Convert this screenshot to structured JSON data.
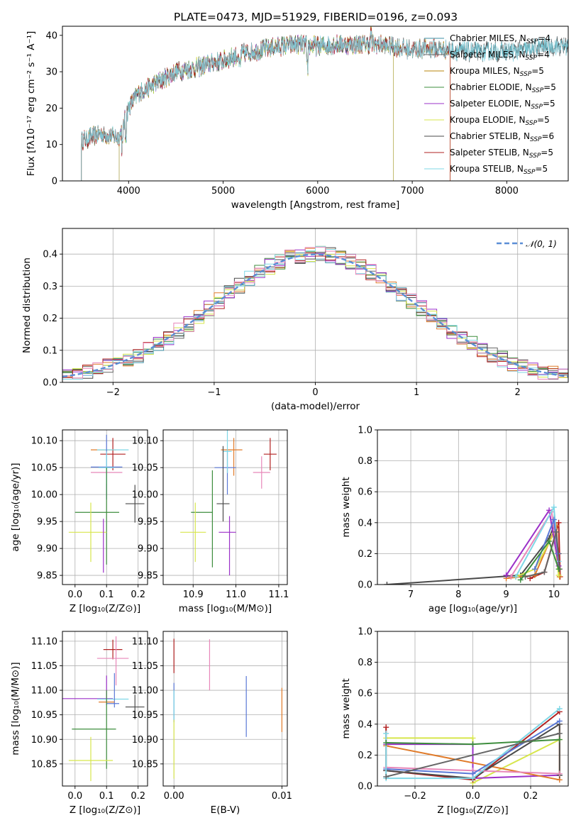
{
  "figure": {
    "title": "PLATE=0473, MJD=51929, FIBERID=0196, z=0.093"
  },
  "colors": {
    "Chabrier MILES": "#3d8fa6",
    "Salpeter MILES": "#666666",
    "Kroupa MILES": "#b8860b",
    "Chabrier ELODIE": "#3e8e3e",
    "Salpeter ELODIE": "#9b30c8",
    "Kroupa ELODIE": "#d7e64c",
    "Chabrier STELIB": "#4a4a4a",
    "Salpeter STELIB": "#b22222",
    "Kroupa STELIB": "#7fd7e6",
    "extra1": "#e07b2a",
    "extra2": "#e887b9",
    "extra3": "#5a78d6",
    "normal": "#5b8ed6"
  },
  "chart_data": [
    {
      "id": "spectrum",
      "type": "line",
      "xlabel": "wavelength [Angstrom, rest frame]",
      "ylabel": "Flux [fλ10⁻¹⁷ erg cm⁻² s⁻¹ A⁻¹]",
      "xlim": [
        3300,
        8650
      ],
      "ylim": [
        0,
        42.5
      ],
      "xticks": [
        4000,
        5000,
        6000,
        7000,
        8000
      ],
      "yticks": [
        0,
        10,
        20,
        30,
        40
      ],
      "legend": "top-right",
      "continuum_x": [
        3500,
        3700,
        3900,
        4000,
        4100,
        4300,
        4500,
        4700,
        4900,
        5000,
        5200,
        5400,
        5600,
        5800,
        6000,
        6200,
        6400,
        6600,
        6800,
        7000,
        7200,
        7400,
        7600,
        7800,
        8000,
        8200,
        8400
      ],
      "continuum_y": [
        11,
        13,
        12,
        20,
        24,
        27,
        30,
        31,
        32.5,
        33,
        35,
        36,
        37,
        37.5,
        37,
        37.5,
        37.5,
        37.5,
        37,
        36,
        36.5,
        36,
        35.5,
        35.5,
        35.5,
        36,
        37
      ],
      "series": [
        {
          "name": "Chabrier MILES",
          "ssp": "4",
          "x_start": 3500,
          "x_end": 8650
        },
        {
          "name": "Salpeter MILES",
          "ssp": "4",
          "x_start": 3500,
          "x_end": 8650
        },
        {
          "name": "Kroupa MILES",
          "ssp": "5",
          "x_start": 3500,
          "x_end": 7400
        },
        {
          "name": "Chabrier ELODIE",
          "ssp": "5",
          "x_start": 3900,
          "x_end": 6800
        },
        {
          "name": "Salpeter ELODIE",
          "ssp": "5",
          "x_start": 3900,
          "x_end": 6800
        },
        {
          "name": "Kroupa ELODIE",
          "ssp": "5",
          "x_start": 3900,
          "x_end": 6800
        },
        {
          "name": "Chabrier STELIB",
          "ssp": "6",
          "x_start": 3500,
          "x_end": 8650
        },
        {
          "name": "Salpeter STELIB",
          "ssp": "5",
          "x_start": 3500,
          "x_end": 7400
        },
        {
          "name": "Kroupa STELIB",
          "ssp": "5",
          "x_start": 3500,
          "x_end": 8650
        }
      ],
      "legend_prefix": "N",
      "legend_sub": "SSP"
    },
    {
      "id": "residuals",
      "type": "line",
      "xlabel": "(data-model)/error",
      "ylabel": "Normed distribution",
      "xlim": [
        -2.5,
        2.5
      ],
      "ylim": [
        0,
        0.48
      ],
      "xticks": [
        -2,
        -1,
        0,
        1,
        2
      ],
      "yticks": [
        0.0,
        0.1,
        0.2,
        0.3,
        0.4
      ],
      "grid": true,
      "legend": "top-right",
      "legend_label": "𝒩(0, 1)"
    },
    {
      "id": "age-vs-Z",
      "type": "scatter",
      "xlabel": "Z [log₁₀(Z/Z⊙)]",
      "ylabel": "age  [log₁₀(age/yr)]",
      "xlim": [
        -0.04,
        0.23
      ],
      "ylim": [
        9.833,
        10.12
      ],
      "xticks": [
        0.0,
        0.1,
        0.2
      ],
      "yticks": [
        9.85,
        9.9,
        9.95,
        10.0,
        10.05,
        10.1
      ],
      "grid": true,
      "points": [
        {
          "x": 0.09,
          "xerr": 0.04,
          "y": 10.083,
          "yerr": 0.0,
          "color": "#e07b2a"
        },
        {
          "x": 0.12,
          "xerr": 0.04,
          "y": 10.075,
          "yerr": 0.03,
          "color": "#b22222"
        },
        {
          "x": 0.12,
          "xerr": 0.05,
          "y": 10.083,
          "yerr": 0.0,
          "color": "#7fd7e6"
        },
        {
          "x": 0.1,
          "xerr": 0.05,
          "y": 10.051,
          "yerr": 0.06,
          "color": "#5a78d6"
        },
        {
          "x": 0.1,
          "xerr": 0.05,
          "y": 10.041,
          "yerr": 0.0,
          "color": "#e887b9"
        },
        {
          "x": 0.1,
          "xerr": 0.025,
          "y": 10.05,
          "yerr": 0.03,
          "color": "#7fd7e6"
        },
        {
          "x": 0.19,
          "xerr": 0.03,
          "y": 9.983,
          "yerr": 0.035,
          "color": "#4a4a4a"
        },
        {
          "x": 0.07,
          "xerr": 0.07,
          "y": 9.967,
          "yerr": 0.0,
          "color": "#3e8e3e"
        },
        {
          "x": 0.1,
          "xerr": 0.0,
          "y": 9.96,
          "yerr": 0.09,
          "color": "#3e8e3e"
        },
        {
          "x": 0.04,
          "xerr": 0.06,
          "y": 9.93,
          "yerr": 0.0,
          "color": "#d7e64c"
        },
        {
          "x": 0.05,
          "xerr": 0.0,
          "y": 9.93,
          "yerr": 0.055,
          "color": "#d7e64c"
        },
        {
          "x": 0.09,
          "xerr": 0.0,
          "y": 9.905,
          "yerr": 0.05,
          "color": "#9b30c8"
        }
      ]
    },
    {
      "id": "age-vs-mass",
      "type": "scatter",
      "xlabel": "mass [log₁₀(M/M⊙)]",
      "ylabel": "",
      "xlim": [
        10.83,
        11.12
      ],
      "ylim": [
        9.833,
        10.12
      ],
      "xticks": [
        10.9,
        11.0,
        11.1
      ],
      "yticks": [
        9.85,
        9.9,
        9.95,
        10.0,
        10.05,
        10.1
      ],
      "grid": true,
      "points": [
        {
          "x": 10.99,
          "xerr": 0.025,
          "y": 10.083,
          "yerr": 0.0,
          "color": "#e07b2a"
        },
        {
          "x": 10.995,
          "xerr": 0.0,
          "y": 10.07,
          "yerr": 0.035,
          "color": "#e07b2a"
        },
        {
          "x": 11.08,
          "xerr": 0.015,
          "y": 10.075,
          "yerr": 0.03,
          "color": "#b22222"
        },
        {
          "x": 11.06,
          "xerr": 0.02,
          "y": 10.041,
          "yerr": 0.03,
          "color": "#e887b9"
        },
        {
          "x": 10.975,
          "xerr": 0.025,
          "y": 10.05,
          "yerr": 0.0,
          "color": "#5a78d6"
        },
        {
          "x": 10.98,
          "xerr": 0.0,
          "y": 10.04,
          "yerr": 0.04,
          "color": "#5a78d6"
        },
        {
          "x": 10.98,
          "xerr": 0.01,
          "y": 10.08,
          "yerr": 0.04,
          "color": "#7fd7e6"
        },
        {
          "x": 10.97,
          "xerr": 0.0,
          "y": 10.02,
          "yerr": 0.07,
          "color": "#4a4a4a"
        },
        {
          "x": 10.97,
          "xerr": 0.015,
          "y": 9.983,
          "yerr": 0.0,
          "color": "#4a4a4a"
        },
        {
          "x": 10.92,
          "xerr": 0.025,
          "y": 9.967,
          "yerr": 0.0,
          "color": "#3e8e3e"
        },
        {
          "x": 10.945,
          "xerr": 0.0,
          "y": 9.955,
          "yerr": 0.09,
          "color": "#3e8e3e"
        },
        {
          "x": 10.9,
          "xerr": 0.03,
          "y": 9.93,
          "yerr": 0.0,
          "color": "#d7e64c"
        },
        {
          "x": 10.905,
          "xerr": 0.0,
          "y": 9.93,
          "yerr": 0.055,
          "color": "#d7e64c"
        },
        {
          "x": 10.98,
          "xerr": 0.02,
          "y": 9.93,
          "yerr": 0.0,
          "color": "#9b30c8"
        },
        {
          "x": 10.985,
          "xerr": 0.0,
          "y": 9.905,
          "yerr": 0.055,
          "color": "#9b30c8"
        }
      ]
    },
    {
      "id": "weight-vs-age",
      "type": "line",
      "xlabel": "age  [log₁₀(age/yr)]",
      "ylabel": "mass weight",
      "xlim": [
        6.3,
        10.3
      ],
      "ylim": [
        0,
        1.0
      ],
      "xticks": [
        7,
        8,
        9,
        10
      ],
      "yticks": [
        0.0,
        0.2,
        0.4,
        0.6,
        0.8,
        1.0
      ],
      "grid": true,
      "series": [
        {
          "color": "#4a4a4a",
          "x": [
            6.5,
            9.3,
            9.9,
            10.0,
            10.1
          ],
          "y": [
            0.0,
            0.06,
            0.3,
            0.38,
            0.2
          ]
        },
        {
          "color": "#b22222",
          "x": [
            9.5,
            9.8,
            10.1,
            10.13
          ],
          "y": [
            0.04,
            0.08,
            0.4,
            0.05
          ]
        },
        {
          "color": "#e07b2a",
          "x": [
            9.0,
            9.6,
            10.05,
            10.12
          ],
          "y": [
            0.04,
            0.06,
            0.38,
            0.05
          ]
        },
        {
          "color": "#d7e64c",
          "x": [
            9.2,
            9.6,
            10.0,
            10.1
          ],
          "y": [
            0.05,
            0.1,
            0.33,
            0.06
          ]
        },
        {
          "color": "#9b30c8",
          "x": [
            9.0,
            9.9,
            10.1
          ],
          "y": [
            0.06,
            0.48,
            0.12
          ]
        },
        {
          "color": "#e887b9",
          "x": [
            9.1,
            9.95,
            10.08
          ],
          "y": [
            0.05,
            0.47,
            0.2
          ]
        },
        {
          "color": "#7fd7e6",
          "x": [
            9.2,
            10.0,
            10.1
          ],
          "y": [
            0.05,
            0.5,
            0.15
          ]
        },
        {
          "color": "#5a78d6",
          "x": [
            9.6,
            10.0,
            10.08
          ],
          "y": [
            0.1,
            0.42,
            0.2
          ]
        },
        {
          "color": "#666666",
          "x": [
            9.4,
            9.8,
            10.05,
            10.12
          ],
          "y": [
            0.05,
            0.08,
            0.34,
            0.1
          ]
        },
        {
          "color": "#3e8e3e",
          "x": [
            9.3,
            9.9,
            10.1
          ],
          "y": [
            0.03,
            0.28,
            0.1
          ]
        }
      ]
    },
    {
      "id": "mass-vs-Z",
      "type": "scatter",
      "xlabel": "Z [log₁₀(Z/Z⊙)]",
      "ylabel": "mass [log₁₀(M/M⊙)]",
      "xlim": [
        -0.04,
        0.23
      ],
      "ylim": [
        10.805,
        11.12
      ],
      "xticks": [
        0.0,
        0.1,
        0.2
      ],
      "yticks": [
        10.85,
        10.9,
        10.95,
        11.0,
        11.05,
        11.1
      ],
      "grid": true,
      "points": [
        {
          "x": 0.12,
          "xerr": 0.03,
          "y": 11.083,
          "yerr": 0.02,
          "color": "#b22222"
        },
        {
          "x": 0.12,
          "xerr": 0.05,
          "y": 11.065,
          "yerr": 0.0,
          "color": "#e887b9"
        },
        {
          "x": 0.13,
          "xerr": 0.0,
          "y": 11.06,
          "yerr": 0.05,
          "color": "#e887b9"
        },
        {
          "x": 0.1,
          "xerr": 0.0,
          "y": 11.0,
          "yerr": 0.03,
          "color": "#9b30c8"
        },
        {
          "x": 0.04,
          "xerr": 0.08,
          "y": 10.983,
          "yerr": 0.0,
          "color": "#9b30c8"
        },
        {
          "x": 0.12,
          "xerr": 0.05,
          "y": 10.982,
          "yerr": 0.0,
          "color": "#7fd7e6"
        },
        {
          "x": 0.125,
          "xerr": 0.0,
          "y": 11.0,
          "yerr": 0.035,
          "color": "#5a78d6"
        },
        {
          "x": 0.1,
          "xerr": 0.025,
          "y": 10.976,
          "yerr": 0.0,
          "color": "#e07b2a"
        },
        {
          "x": 0.12,
          "xerr": 0.02,
          "y": 10.973,
          "yerr": 0.0,
          "color": "#5a78d6"
        },
        {
          "x": 0.19,
          "xerr": 0.03,
          "y": 10.966,
          "yerr": 0.025,
          "color": "#4a4a4a"
        },
        {
          "x": 0.06,
          "xerr": 0.07,
          "y": 10.921,
          "yerr": 0.0,
          "color": "#3e8e3e"
        },
        {
          "x": 0.1,
          "xerr": 0.0,
          "y": 10.92,
          "yerr": 0.08,
          "color": "#3e8e3e"
        },
        {
          "x": 0.05,
          "xerr": 0.07,
          "y": 10.857,
          "yerr": 0.0,
          "color": "#d7e64c"
        },
        {
          "x": 0.05,
          "xerr": 0.0,
          "y": 10.86,
          "yerr": 0.045,
          "color": "#d7e64c"
        }
      ]
    },
    {
      "id": "mass-vs-EBV",
      "type": "scatter",
      "xlabel": "E(B-V)",
      "ylabel": "",
      "xlim": [
        -0.001,
        0.0105
      ],
      "ylim": [
        10.805,
        11.12
      ],
      "xticks": [
        0.0,
        0.01
      ],
      "yticks": [
        10.85,
        10.9,
        10.95,
        11.0,
        11.05,
        11.1
      ],
      "grid": true,
      "points": [
        {
          "x": 0.0,
          "xerr": 0.0,
          "y": 11.07,
          "yerr": 0.035,
          "color": "#b22222"
        },
        {
          "x": 0.0033,
          "xerr": 0.0,
          "y": 11.052,
          "yerr": 0.052,
          "color": "#e887b9"
        },
        {
          "x": 0.0,
          "xerr": 0.0,
          "y": 10.975,
          "yerr": 0.04,
          "color": "#5a78d6"
        },
        {
          "x": 0.0,
          "xerr": 0.0,
          "y": 10.97,
          "yerr": 0.03,
          "color": "#7fd7e6"
        },
        {
          "x": 0.0067,
          "xerr": 0.0,
          "y": 10.967,
          "yerr": 0.062,
          "color": "#5a78d6"
        },
        {
          "x": 0.01,
          "xerr": 0.0,
          "y": 10.96,
          "yerr": 0.045,
          "color": "#e07b2a"
        },
        {
          "x": 0.0,
          "xerr": 0.0,
          "y": 10.88,
          "yerr": 0.06,
          "color": "#d7e64c"
        }
      ]
    },
    {
      "id": "weight-vs-Z",
      "type": "line",
      "xlabel": "Z [log₁₀(Z/Z⊙)]",
      "ylabel": "mass weight",
      "xlim": [
        -0.33,
        0.33
      ],
      "ylim": [
        0,
        1.0
      ],
      "xticks": [
        -0.2,
        0.0,
        0.2
      ],
      "yticks": [
        0.0,
        0.2,
        0.4,
        0.6,
        0.8,
        1.0
      ],
      "grid": true,
      "series": [
        {
          "color": "#d7e64c",
          "x": [
            -0.3,
            0.0,
            0.0,
            0.3
          ],
          "y": [
            0.31,
            0.31,
            0.02,
            0.3
          ]
        },
        {
          "color": "#9b30c8",
          "x": [
            -0.3,
            0.0,
            0.0,
            0.3
          ],
          "y": [
            0.27,
            0.27,
            0.05,
            0.07
          ]
        },
        {
          "color": "#e07b2a",
          "x": [
            -0.3,
            0.3,
            0.3
          ],
          "y": [
            0.26,
            0.04,
            0.4
          ]
        },
        {
          "color": "#b22222",
          "x": [
            -0.3,
            -0.3,
            0.0,
            0.3
          ],
          "y": [
            0.38,
            0.1,
            0.04,
            0.48
          ]
        },
        {
          "color": "#4a4a4a",
          "x": [
            -0.3,
            0.0,
            0.3,
            0.3
          ],
          "y": [
            0.1,
            0.05,
            0.4,
            0.07
          ]
        },
        {
          "color": "#e887b9",
          "x": [
            -0.3,
            0.0,
            0.3
          ],
          "y": [
            0.12,
            0.1,
            0.08
          ]
        },
        {
          "color": "#5a78d6",
          "x": [
            -0.3,
            0.0,
            0.3
          ],
          "y": [
            0.11,
            0.08,
            0.42
          ]
        },
        {
          "color": "#7fd7e6",
          "x": [
            -0.3,
            -0.3,
            0.0,
            0.3
          ],
          "y": [
            0.34,
            0.05,
            0.05,
            0.5
          ]
        },
        {
          "color": "#3e8e3e",
          "x": [
            -0.3,
            0.0,
            0.3
          ],
          "y": [
            0.28,
            0.27,
            0.3
          ]
        },
        {
          "color": "#666666",
          "x": [
            -0.3,
            0.3
          ],
          "y": [
            0.06,
            0.34
          ]
        }
      ]
    }
  ]
}
